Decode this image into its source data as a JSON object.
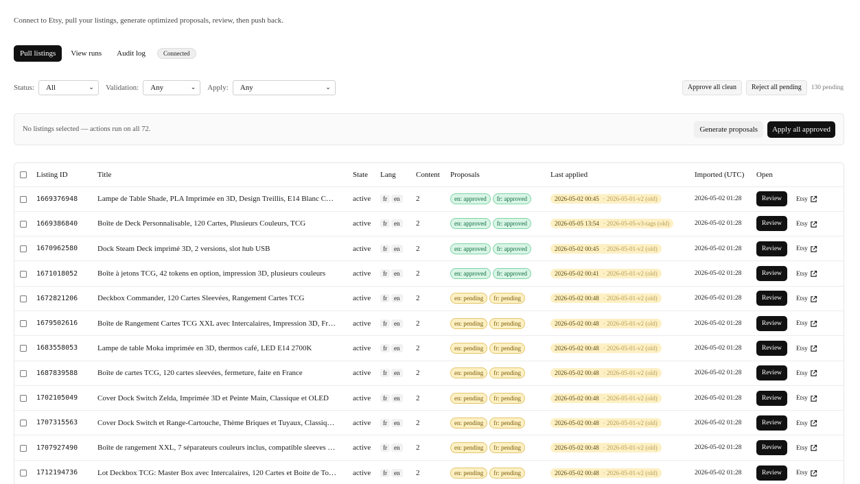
{
  "subtitle": "Connect to Etsy, pull your listings, generate optimized proposals, review, then push back.",
  "tabs": {
    "pull": "Pull listings",
    "runs": "View runs",
    "audit": "Audit log",
    "status_badge": "Connected"
  },
  "filters": {
    "status_label": "Status:",
    "status_value": "All",
    "validation_label": "Validation:",
    "validation_value": "Any",
    "apply_label": "Apply:",
    "apply_value": "Any"
  },
  "bulk": {
    "approve_clean": "Approve all clean",
    "reject_pending": "Reject all pending",
    "pending_count": "130 pending"
  },
  "action_bar": {
    "message": "No listings selected — actions run on all 72.",
    "generate": "Generate proposals",
    "apply_all": "Apply all approved"
  },
  "table": {
    "headers": [
      "Listing ID",
      "Title",
      "State",
      "Lang",
      "Content",
      "Proposals",
      "Last applied",
      "Imported (UTC)",
      "Open"
    ],
    "rows": [
      {
        "id": "1669376948",
        "title": "Lampe de Table Shade, PLA Imprimée en 3D, Design Treillis, E14 Blanc C…",
        "state": "active",
        "lang1": "fr",
        "lang2": "en",
        "content": "2",
        "p1": "en: approved",
        "p2": "fr: approved",
        "pstatus": "approved",
        "applied": "2026-05-02 00:45",
        "applied_old": "· 2026-05-01-v2 (old)",
        "imported": "2026-05-02 01:28",
        "review": "Review",
        "etsy": "Etsy"
      },
      {
        "id": "1669386840",
        "title": "Boîte de Deck Personnalisable, 120 Cartes, Plusieurs Couleurs, TCG",
        "state": "active",
        "lang1": "fr",
        "lang2": "en",
        "content": "2",
        "p1": "en: approved",
        "p2": "fr: approved",
        "pstatus": "approved",
        "applied": "2026-05-05 13:54",
        "applied_old": "· 2026-05-05-v3-tags (old)",
        "imported": "2026-05-02 01:28",
        "review": "Review",
        "etsy": "Etsy"
      },
      {
        "id": "1670962580",
        "title": "Dock Steam Deck imprimé 3D, 2 versions, slot hub USB",
        "state": "active",
        "lang1": "fr",
        "lang2": "en",
        "content": "2",
        "p1": "en: approved",
        "p2": "fr: approved",
        "pstatus": "approved",
        "applied": "2026-05-02 00:45",
        "applied_old": "· 2026-05-01-v2 (old)",
        "imported": "2026-05-02 01:28",
        "review": "Review",
        "etsy": "Etsy"
      },
      {
        "id": "1671018052",
        "title": "Boîte à jetons TCG, 42 tokens en option, impression 3D, plusieurs couleurs",
        "state": "active",
        "lang1": "fr",
        "lang2": "en",
        "content": "2",
        "p1": "en: approved",
        "p2": "fr: approved",
        "pstatus": "approved",
        "applied": "2026-05-02 00:41",
        "applied_old": "· 2026-05-01-v2 (old)",
        "imported": "2026-05-02 01:28",
        "review": "Review",
        "etsy": "Etsy"
      },
      {
        "id": "1672821206",
        "title": "Deckbox Commander, 120 Cartes Sleevées, Rangement Cartes TCG",
        "state": "active",
        "lang1": "fr",
        "lang2": "en",
        "content": "2",
        "p1": "en: pending",
        "p2": "fr: pending",
        "pstatus": "pending",
        "applied": "2026-05-02 00:48",
        "applied_old": "· 2026-05-01-v2 (old)",
        "imported": "2026-05-02 01:28",
        "review": "Review",
        "etsy": "Etsy"
      },
      {
        "id": "1679502616",
        "title": "Boîte de Rangement Cartes TCG XXL avec Intercalaires, Impression 3D, Fr…",
        "state": "active",
        "lang1": "fr",
        "lang2": "en",
        "content": "2",
        "p1": "en: pending",
        "p2": "fr: pending",
        "pstatus": "pending",
        "applied": "2026-05-02 00:48",
        "applied_old": "· 2026-05-01-v2 (old)",
        "imported": "2026-05-02 01:28",
        "review": "Review",
        "etsy": "Etsy"
      },
      {
        "id": "1683558053",
        "title": "Lampe de table Moka imprimée en 3D, thermos café, LED E14 2700K",
        "state": "active",
        "lang1": "fr",
        "lang2": "en",
        "content": "2",
        "p1": "en: pending",
        "p2": "fr: pending",
        "pstatus": "pending",
        "applied": "2026-05-02 00:48",
        "applied_old": "· 2026-05-01-v2 (old)",
        "imported": "2026-05-02 01:28",
        "review": "Review",
        "etsy": "Etsy"
      },
      {
        "id": "1687839588",
        "title": "Boîte de cartes TCG, 120 cartes sleevées, fermeture, faite en France",
        "state": "active",
        "lang1": "fr",
        "lang2": "en",
        "content": "2",
        "p1": "en: pending",
        "p2": "fr: pending",
        "pstatus": "pending",
        "applied": "2026-05-02 00:48",
        "applied_old": "· 2026-05-01-v2 (old)",
        "imported": "2026-05-02 01:28",
        "review": "Review",
        "etsy": "Etsy"
      },
      {
        "id": "1702105049",
        "title": "Cover Dock Switch Zelda, Imprimée 3D et Peinte Main, Classique et OLED",
        "state": "active",
        "lang1": "fr",
        "lang2": "en",
        "content": "2",
        "p1": "en: pending",
        "p2": "fr: pending",
        "pstatus": "pending",
        "applied": "2026-05-02 00:48",
        "applied_old": "· 2026-05-01-v2 (old)",
        "imported": "2026-05-02 01:28",
        "review": "Review",
        "etsy": "Etsy"
      },
      {
        "id": "1707315563",
        "title": "Cover Dock Switch et Range-Cartouche, Thème Briques et Tuyaux, Classiq…",
        "state": "active",
        "lang1": "fr",
        "lang2": "en",
        "content": "2",
        "p1": "en: pending",
        "p2": "fr: pending",
        "pstatus": "pending",
        "applied": "2026-05-02 00:48",
        "applied_old": "· 2026-05-01-v2 (old)",
        "imported": "2026-05-02 01:28",
        "review": "Review",
        "etsy": "Etsy"
      },
      {
        "id": "1707927490",
        "title": "Boîte de rangement XXL, 7 séparateurs couleurs inclus, compatible sleeves …",
        "state": "active",
        "lang1": "fr",
        "lang2": "en",
        "content": "2",
        "p1": "en: pending",
        "p2": "fr: pending",
        "pstatus": "pending",
        "applied": "2026-05-02 00:48",
        "applied_old": "· 2026-05-01-v2 (old)",
        "imported": "2026-05-02 01:28",
        "review": "Review",
        "etsy": "Etsy"
      },
      {
        "id": "1712194736",
        "title": "Lot Deckbox TCG: Master Box avec Intercalaires, 120 Cartes et Boite de To…",
        "state": "active",
        "lang1": "fr",
        "lang2": "en",
        "content": "2",
        "p1": "en: pending",
        "p2": "fr: pending",
        "pstatus": "pending",
        "applied": "2026-05-02 00:48",
        "applied_old": "· 2026-05-01-v2 (old)",
        "imported": "2026-05-02 01:28",
        "review": "Review",
        "etsy": "Etsy"
      }
    ]
  }
}
